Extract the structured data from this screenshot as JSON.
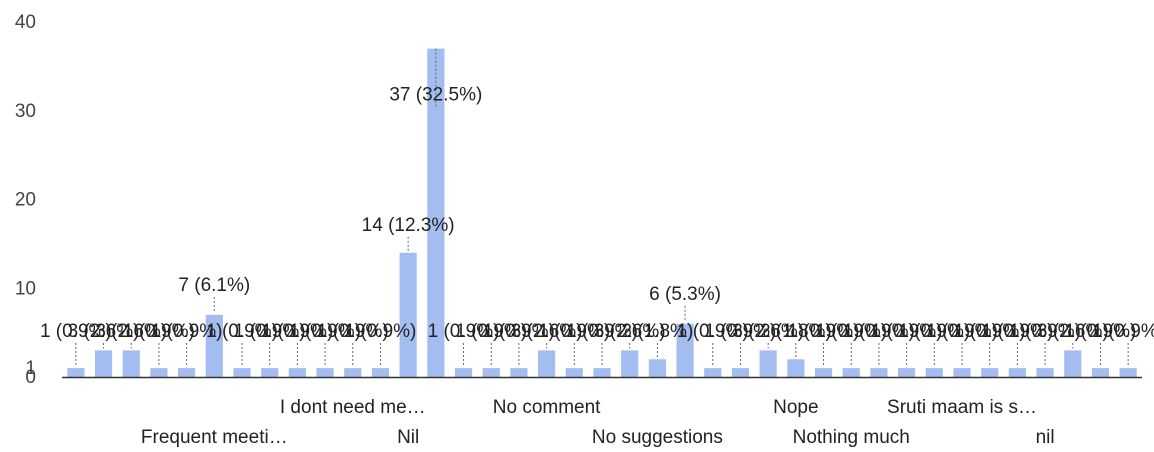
{
  "chart_data": {
    "type": "bar",
    "ylim": [
      0,
      40
    ],
    "y_ticks": [
      0,
      1,
      10,
      20,
      30,
      40
    ],
    "grid": false,
    "bar_color": "#a4bdf0",
    "values": [
      1,
      3,
      3,
      1,
      1,
      7,
      1,
      1,
      1,
      1,
      1,
      1,
      14,
      37,
      1,
      1,
      1,
      3,
      1,
      1,
      3,
      2,
      6,
      1,
      1,
      3,
      2,
      1,
      1,
      1,
      1,
      1,
      1,
      1,
      1,
      1,
      3,
      1,
      1
    ],
    "x_labels": [
      {
        "index": 5,
        "row": 2,
        "text": "Frequent meeti…"
      },
      {
        "index": 10,
        "row": 1,
        "text": "I dont need me…"
      },
      {
        "index": 12,
        "row": 2,
        "text": "Nil"
      },
      {
        "index": 17,
        "row": 1,
        "text": "No comment"
      },
      {
        "index": 21,
        "row": 2,
        "text": "No suggestions"
      },
      {
        "index": 26,
        "row": 1,
        "text": "Nope"
      },
      {
        "index": 28,
        "row": 2,
        "text": "Nothing much"
      },
      {
        "index": 32,
        "row": 1,
        "text": "Sruti maam is s…"
      },
      {
        "index": 35,
        "row": 2,
        "text": "nil"
      }
    ],
    "data_labels": [
      {
        "index": 0,
        "text": "1 (0.9%)"
      },
      {
        "index": 1,
        "text": "3 (2.6%)"
      },
      {
        "index": 2,
        "text": "3 (2.6%)"
      },
      {
        "index": 3,
        "text": "1 (0.9%)"
      },
      {
        "index": 4,
        "text": "1 (0.9%)"
      },
      {
        "index": 5,
        "text": "7 (6.1%)"
      },
      {
        "index": 6,
        "text": "1 (0.9%)"
      },
      {
        "index": 7,
        "text": "1 (0.9%)"
      },
      {
        "index": 8,
        "text": "1 (0.9%)"
      },
      {
        "index": 9,
        "text": "1 (0.9%)"
      },
      {
        "index": 10,
        "text": "1 (0.9%)"
      },
      {
        "index": 11,
        "text": "1 (0.9%)"
      },
      {
        "index": 12,
        "text": "14 (12.3%)"
      },
      {
        "index": 13,
        "text": "37 (32.5%)"
      },
      {
        "index": 14,
        "text": "1 (0.9%)"
      },
      {
        "index": 15,
        "text": "1 (0.9%)"
      },
      {
        "index": 16,
        "text": "1 (0.9%)"
      },
      {
        "index": 17,
        "text": "3 (2.6%)"
      },
      {
        "index": 18,
        "text": "1 (0.9%)"
      },
      {
        "index": 19,
        "text": "1 (0.9%)"
      },
      {
        "index": 20,
        "text": "3 (2.6%)"
      },
      {
        "index": 21,
        "text": "2 (1.8%)"
      },
      {
        "index": 22,
        "text": "6 (5.3%)"
      },
      {
        "index": 23,
        "text": "1 (0.9%)"
      },
      {
        "index": 24,
        "text": "1 (0.9%)"
      },
      {
        "index": 25,
        "text": "3 (2.6%)"
      },
      {
        "index": 26,
        "text": "2 (1.8%)"
      },
      {
        "index": 27,
        "text": "1 (0.9%)"
      },
      {
        "index": 28,
        "text": "1 (0.9%)"
      },
      {
        "index": 29,
        "text": "1 (0.9%)"
      },
      {
        "index": 30,
        "text": "1 (0.9%)"
      },
      {
        "index": 31,
        "text": "1 (0.9%)"
      },
      {
        "index": 32,
        "text": "1 (0.9%)"
      },
      {
        "index": 33,
        "text": "1 (0.9%)"
      },
      {
        "index": 34,
        "text": "1 (0.9%)"
      },
      {
        "index": 35,
        "text": "1 (0.9%)"
      },
      {
        "index": 36,
        "text": "3 (2.6%)"
      },
      {
        "index": 37,
        "text": "1 (0.9%)"
      },
      {
        "index": 38,
        "text": "1 (0.9%)"
      }
    ]
  }
}
